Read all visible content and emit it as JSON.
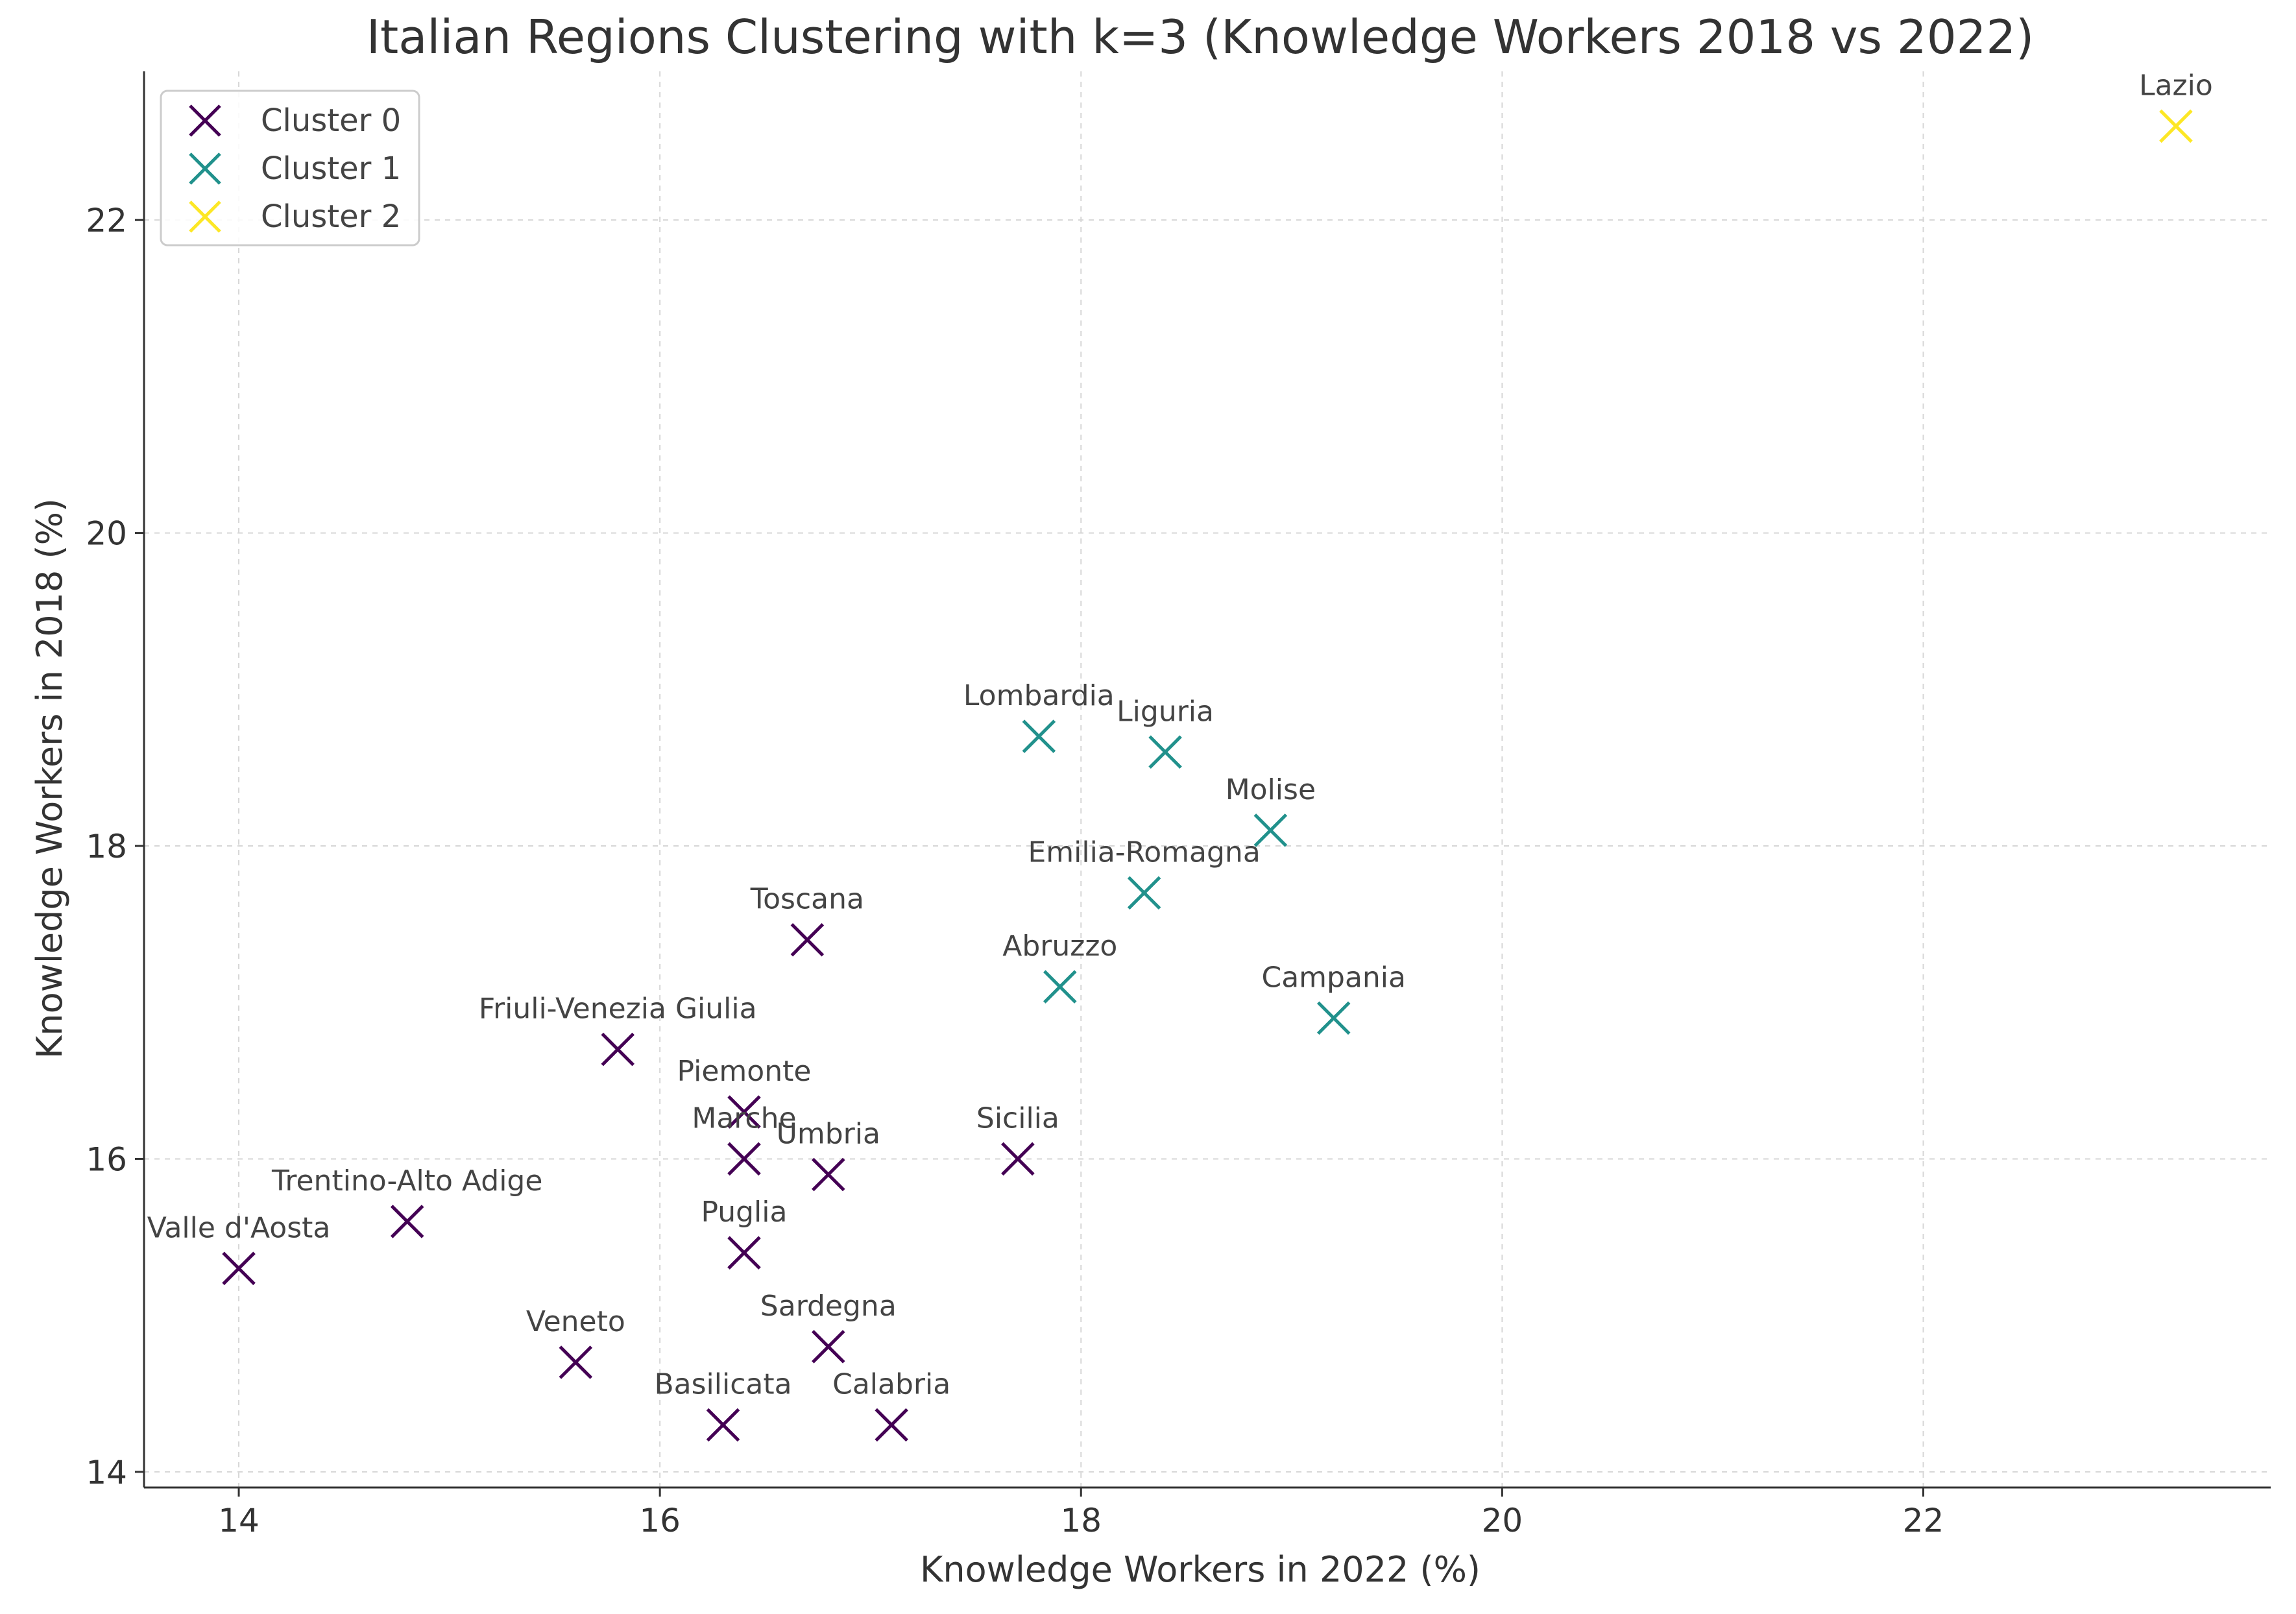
{
  "chart_data": {
    "type": "scatter",
    "title": "Italian Regions Clustering with k=3 (Knowledge Workers 2018 vs 2022)",
    "xlabel": "Knowledge Workers in 2022 (%)",
    "ylabel": "Knowledge Workers in 2018 (%)",
    "xlim": [
      13.55,
      23.65
    ],
    "ylim": [
      13.9,
      22.95
    ],
    "xticks": [
      14,
      16,
      18,
      20,
      22
    ],
    "yticks": [
      14,
      16,
      18,
      20,
      22
    ],
    "grid": true,
    "legend_position": "top-left",
    "clusters": [
      {
        "name": "Cluster 0",
        "color": "#440154"
      },
      {
        "name": "Cluster 1",
        "color": "#21918c"
      },
      {
        "name": "Cluster 2",
        "color": "#fde725"
      }
    ],
    "points": [
      {
        "label": "Valle d'Aosta",
        "x": 14.0,
        "y": 15.3,
        "cluster": 0
      },
      {
        "label": "Trentino-Alto Adige",
        "x": 14.8,
        "y": 15.6,
        "cluster": 0
      },
      {
        "label": "Veneto",
        "x": 15.6,
        "y": 14.7,
        "cluster": 0
      },
      {
        "label": "Friuli-Venezia Giulia",
        "x": 15.8,
        "y": 16.7,
        "cluster": 0
      },
      {
        "label": "Basilicata",
        "x": 16.3,
        "y": 14.3,
        "cluster": 0
      },
      {
        "label": "Piemonte",
        "x": 16.4,
        "y": 16.3,
        "cluster": 0
      },
      {
        "label": "Marche",
        "x": 16.4,
        "y": 16.0,
        "cluster": 0
      },
      {
        "label": "Puglia",
        "x": 16.4,
        "y": 15.4,
        "cluster": 0
      },
      {
        "label": "Toscana",
        "x": 16.7,
        "y": 17.4,
        "cluster": 0
      },
      {
        "label": "Umbria",
        "x": 16.8,
        "y": 15.9,
        "cluster": 0
      },
      {
        "label": "Sardegna",
        "x": 16.8,
        "y": 14.8,
        "cluster": 0
      },
      {
        "label": "Calabria",
        "x": 17.1,
        "y": 14.3,
        "cluster": 0
      },
      {
        "label": "Sicilia",
        "x": 17.7,
        "y": 16.0,
        "cluster": 0
      },
      {
        "label": "Lombardia",
        "x": 17.8,
        "y": 18.7,
        "cluster": 1
      },
      {
        "label": "Abruzzo",
        "x": 17.9,
        "y": 17.1,
        "cluster": 1
      },
      {
        "label": "Emilia-Romagna",
        "x": 18.3,
        "y": 17.7,
        "cluster": 1
      },
      {
        "label": "Liguria",
        "x": 18.4,
        "y": 18.6,
        "cluster": 1
      },
      {
        "label": "Molise",
        "x": 18.9,
        "y": 18.1,
        "cluster": 1
      },
      {
        "label": "Campania",
        "x": 19.2,
        "y": 16.9,
        "cluster": 1
      },
      {
        "label": "Lazio",
        "x": 23.2,
        "y": 22.6,
        "cluster": 2
      }
    ]
  }
}
